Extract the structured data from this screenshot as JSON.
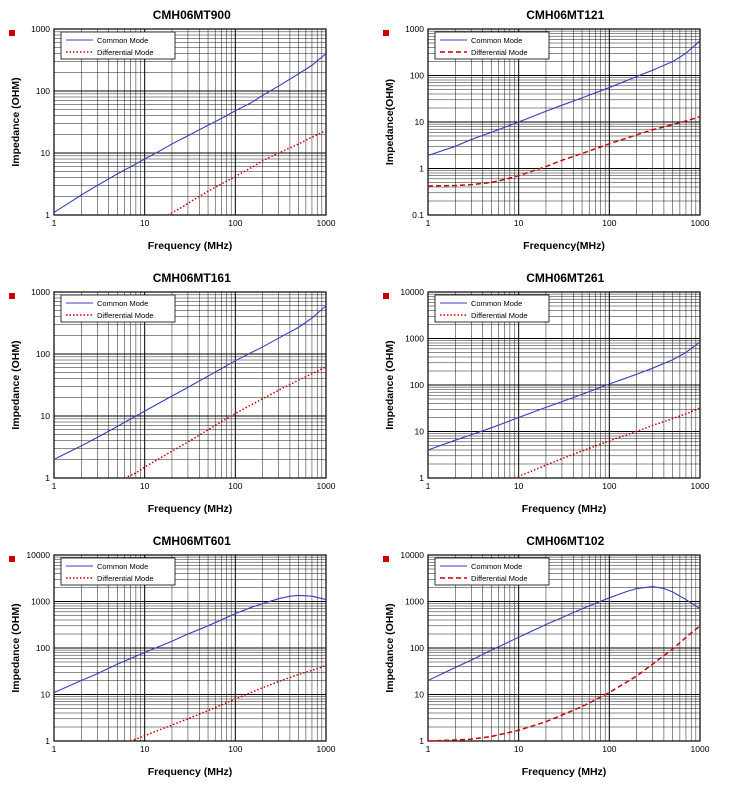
{
  "page": {
    "background": "#ffffff"
  },
  "colors": {
    "common_mode": "#3340bb",
    "differential_mode": "#cc0000",
    "grid": "#000000",
    "legend_border": "#000000",
    "marker_red": "#cc0000"
  },
  "chart_data": [
    {
      "type": "line",
      "title": "CMH06MT900",
      "xlabel": "Frequency (MHz)",
      "ylabel": "Impedance (OHM)",
      "xlim": [
        1,
        1000
      ],
      "ylim": [
        1,
        1000
      ],
      "xscale": "log",
      "yscale": "log",
      "grid": true,
      "legend_position": "upper-left",
      "series": [
        {
          "name": "Common Mode",
          "color": "#3340bb",
          "style": "solid",
          "points": [
            [
              1,
              1.1
            ],
            [
              1.5,
              1.6
            ],
            [
              2,
              2.1
            ],
            [
              3,
              3
            ],
            [
              5,
              4.6
            ],
            [
              7,
              6
            ],
            [
              10,
              8
            ],
            [
              15,
              11
            ],
            [
              20,
              14
            ],
            [
              30,
              19
            ],
            [
              50,
              28
            ],
            [
              70,
              36
            ],
            [
              100,
              48
            ],
            [
              150,
              65
            ],
            [
              200,
              85
            ],
            [
              300,
              120
            ],
            [
              500,
              190
            ],
            [
              700,
              260
            ],
            [
              1000,
              400
            ]
          ]
        },
        {
          "name": "Differential Mode",
          "color": "#cc0000",
          "style": "dotted",
          "points": [
            [
              18,
              1
            ],
            [
              25,
              1.3
            ],
            [
              40,
              2
            ],
            [
              60,
              2.8
            ],
            [
              100,
              4.2
            ],
            [
              150,
              5.8
            ],
            [
              200,
              7.5
            ],
            [
              300,
              10
            ],
            [
              500,
              14
            ],
            [
              700,
              18
            ],
            [
              1000,
              23
            ]
          ]
        }
      ]
    },
    {
      "type": "line",
      "title": "CMH06MT121",
      "xlabel": "Frequency(MHz)",
      "ylabel": "Impedance(OHM)",
      "xlim": [
        1,
        1000
      ],
      "ylim": [
        0.1,
        1000
      ],
      "xscale": "log",
      "yscale": "log",
      "grid": true,
      "legend_position": "upper-left",
      "series": [
        {
          "name": "Common Mode",
          "color": "#3340bb",
          "style": "solid",
          "points": [
            [
              1,
              1.9
            ],
            [
              2,
              3
            ],
            [
              3,
              4.2
            ],
            [
              5,
              6
            ],
            [
              10,
              10
            ],
            [
              20,
              17
            ],
            [
              30,
              23
            ],
            [
              50,
              33
            ],
            [
              100,
              55
            ],
            [
              200,
              95
            ],
            [
              300,
              130
            ],
            [
              500,
              200
            ],
            [
              700,
              300
            ],
            [
              1000,
              560
            ]
          ]
        },
        {
          "name": "Differential Mode",
          "color": "#cc0000",
          "style": "dashed",
          "points": [
            [
              1,
              0.42
            ],
            [
              2,
              0.43
            ],
            [
              3,
              0.45
            ],
            [
              5,
              0.5
            ],
            [
              7,
              0.58
            ],
            [
              10,
              0.7
            ],
            [
              20,
              1.1
            ],
            [
              30,
              1.5
            ],
            [
              50,
              2.1
            ],
            [
              100,
              3.4
            ],
            [
              200,
              5.3
            ],
            [
              300,
              6.8
            ],
            [
              500,
              8.8
            ],
            [
              700,
              10.5
            ],
            [
              1000,
              13
            ]
          ]
        }
      ]
    },
    {
      "type": "line",
      "title": "CMH06MT161",
      "xlabel": "Frequency (MHz)",
      "ylabel": "Impedance (OHM)",
      "xlim": [
        1,
        1000
      ],
      "ylim": [
        1,
        1000
      ],
      "xscale": "log",
      "yscale": "log",
      "grid": true,
      "legend_position": "upper-left",
      "series": [
        {
          "name": "Common Mode",
          "color": "#3340bb",
          "style": "solid",
          "points": [
            [
              1,
              2
            ],
            [
              2,
              3.3
            ],
            [
              3,
              4.5
            ],
            [
              5,
              6.8
            ],
            [
              10,
              12
            ],
            [
              20,
              21
            ],
            [
              30,
              29
            ],
            [
              50,
              44
            ],
            [
              100,
              78
            ],
            [
              200,
              130
            ],
            [
              300,
              180
            ],
            [
              500,
              270
            ],
            [
              700,
              380
            ],
            [
              1000,
              600
            ]
          ]
        },
        {
          "name": "Differential Mode",
          "color": "#cc0000",
          "style": "dotted",
          "points": [
            [
              6,
              1
            ],
            [
              8,
              1.2
            ],
            [
              10,
              1.5
            ],
            [
              20,
              2.7
            ],
            [
              30,
              3.8
            ],
            [
              50,
              6
            ],
            [
              100,
              11
            ],
            [
              200,
              19
            ],
            [
              300,
              26
            ],
            [
              500,
              38
            ],
            [
              700,
              48
            ],
            [
              1000,
              62
            ]
          ]
        }
      ]
    },
    {
      "type": "line",
      "title": "CMH06MT261",
      "xlabel": "Frequency (MHz)",
      "ylabel": "Impedance (OHM)",
      "xlim": [
        1,
        1000
      ],
      "ylim": [
        1,
        10000
      ],
      "xscale": "log",
      "yscale": "log",
      "grid": true,
      "legend_position": "upper-left",
      "series": [
        {
          "name": "Common Mode",
          "color": "#3340bb",
          "style": "solid",
          "points": [
            [
              1,
              4
            ],
            [
              2,
              6.5
            ],
            [
              3,
              8.5
            ],
            [
              5,
              12
            ],
            [
              10,
              20
            ],
            [
              20,
              33
            ],
            [
              30,
              44
            ],
            [
              50,
              63
            ],
            [
              100,
              105
            ],
            [
              200,
              170
            ],
            [
              300,
              230
            ],
            [
              500,
              350
            ],
            [
              700,
              500
            ],
            [
              1000,
              850
            ]
          ]
        },
        {
          "name": "Differential Mode",
          "color": "#cc0000",
          "style": "dotted",
          "points": [
            [
              9,
              1
            ],
            [
              15,
              1.5
            ],
            [
              20,
              1.9
            ],
            [
              30,
              2.6
            ],
            [
              50,
              3.8
            ],
            [
              100,
              6.3
            ],
            [
              200,
              10
            ],
            [
              300,
              13.5
            ],
            [
              500,
              19
            ],
            [
              700,
              24
            ],
            [
              1000,
              32
            ]
          ]
        }
      ]
    },
    {
      "type": "line",
      "title": "CMH06MT601",
      "xlabel": "Frequency (MHz)",
      "ylabel": "Impedance (OHM)",
      "xlim": [
        1,
        1000
      ],
      "ylim": [
        1,
        10000
      ],
      "xscale": "log",
      "yscale": "log",
      "grid": true,
      "legend_position": "upper-left",
      "series": [
        {
          "name": "Common Mode",
          "color": "#3340bb",
          "style": "solid",
          "points": [
            [
              1,
              11
            ],
            [
              2,
              20
            ],
            [
              3,
              28
            ],
            [
              5,
              45
            ],
            [
              10,
              80
            ],
            [
              20,
              140
            ],
            [
              30,
              200
            ],
            [
              50,
              300
            ],
            [
              100,
              550
            ],
            [
              150,
              750
            ],
            [
              200,
              900
            ],
            [
              300,
              1150
            ],
            [
              400,
              1300
            ],
            [
              500,
              1350
            ],
            [
              700,
              1300
            ],
            [
              1000,
              1100
            ]
          ]
        },
        {
          "name": "Differential Mode",
          "color": "#cc0000",
          "style": "dotted",
          "points": [
            [
              7,
              1
            ],
            [
              10,
              1.3
            ],
            [
              20,
              2.2
            ],
            [
              30,
              3
            ],
            [
              50,
              4.5
            ],
            [
              100,
              8
            ],
            [
              200,
              14
            ],
            [
              300,
              19
            ],
            [
              500,
              27
            ],
            [
              700,
              33
            ],
            [
              1000,
              42
            ]
          ]
        }
      ]
    },
    {
      "type": "line",
      "title": "CMH06MT102",
      "xlabel": "Frequency (MHz)",
      "ylabel": "Impedance (OHM)",
      "xlim": [
        1,
        1000
      ],
      "ylim": [
        1,
        10000
      ],
      "xscale": "log",
      "yscale": "log",
      "grid": true,
      "legend_position": "upper-left",
      "series": [
        {
          "name": "Common Mode",
          "color": "#3340bb",
          "style": "solid",
          "points": [
            [
              1,
              20
            ],
            [
              2,
              38
            ],
            [
              3,
              55
            ],
            [
              5,
              90
            ],
            [
              10,
              170
            ],
            [
              20,
              320
            ],
            [
              30,
              450
            ],
            [
              50,
              700
            ],
            [
              100,
              1200
            ],
            [
              150,
              1600
            ],
            [
              200,
              1900
            ],
            [
              300,
              2100
            ],
            [
              400,
              1900
            ],
            [
              500,
              1600
            ],
            [
              700,
              1100
            ],
            [
              1000,
              700
            ]
          ]
        },
        {
          "name": "Differential Mode",
          "color": "#cc0000",
          "style": "dashed",
          "points": [
            [
              1,
              1
            ],
            [
              2,
              1.05
            ],
            [
              3,
              1.1
            ],
            [
              5,
              1.25
            ],
            [
              10,
              1.7
            ],
            [
              20,
              2.6
            ],
            [
              30,
              3.6
            ],
            [
              50,
              5.5
            ],
            [
              100,
              11
            ],
            [
              200,
              25
            ],
            [
              300,
              45
            ],
            [
              500,
              95
            ],
            [
              700,
              170
            ],
            [
              1000,
              300
            ]
          ]
        }
      ]
    }
  ]
}
